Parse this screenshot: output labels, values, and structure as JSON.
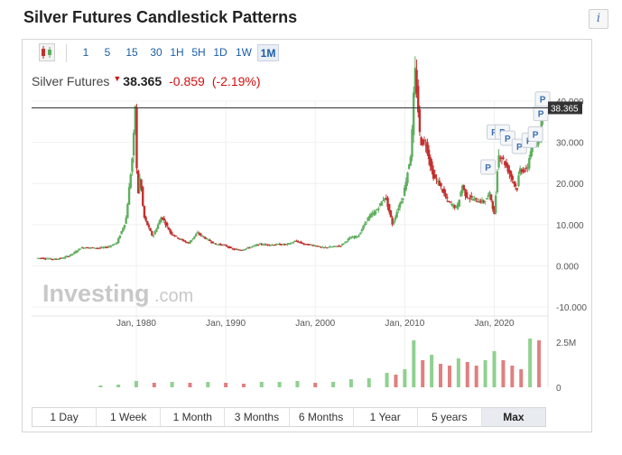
{
  "page": {
    "title": "Silver Futures Candlestick Patterns",
    "info_icon": "i"
  },
  "toolbar": {
    "chart_type_icon": "candlestick-icon",
    "timeframes": [
      "1",
      "5",
      "15",
      "30",
      "1H",
      "5H",
      "1D",
      "1W",
      "1M"
    ],
    "active_timeframe": "1M"
  },
  "quote": {
    "name": "Silver Futures",
    "direction": "down",
    "last": "38.365",
    "change": "-0.859",
    "change_pct": "(-2.19%)"
  },
  "watermark": {
    "brand": "Investing",
    "suffix": ".com"
  },
  "ranges": {
    "buttons": [
      "1 Day",
      "1 Week",
      "1 Month",
      "3 Months",
      "6 Months",
      "1 Year",
      "5 years",
      "Max"
    ],
    "active": "Max"
  },
  "colors": {
    "up": "#5fae5f",
    "down": "#c2302f",
    "volume_up": "#8fd18f",
    "volume_down": "#e07f7f",
    "price_label_bg": "#333333",
    "link_blue": "#1a5fa8",
    "negative": "#d10f0f"
  },
  "chart_data": {
    "type": "candlestick",
    "instrument": "Silver Futures",
    "interval": "1M",
    "x_ticks": [
      "Jan, 1980",
      "Jan, 1990",
      "Jan, 2000",
      "Jan, 2010",
      "Jan, 2020"
    ],
    "y_ticks": [
      "40.000",
      "30.000",
      "20.000",
      "10.000",
      "0.000",
      "-10.000"
    ],
    "y_range": [
      -10,
      40
    ],
    "volume_ticks": [
      "2.5M",
      "0"
    ],
    "current_price_label": "38.365",
    "current_price": 38.365,
    "pattern_marker_label": "P",
    "pattern_markers": [
      {
        "x": 2019.3,
        "y": 24
      },
      {
        "x": 2020.0,
        "y": 32.5
      },
      {
        "x": 2020.9,
        "y": 32.5
      },
      {
        "x": 2021.5,
        "y": 31
      },
      {
        "x": 2022.8,
        "y": 29
      },
      {
        "x": 2023.9,
        "y": 30.5
      },
      {
        "x": 2024.6,
        "y": 32
      },
      {
        "x": 2025.2,
        "y": 37
      },
      {
        "x": 2025.4,
        "y": 40.5
      }
    ],
    "price_series": [
      {
        "x": 1969.0,
        "y": 1.9
      },
      {
        "x": 1970.0,
        "y": 1.8
      },
      {
        "x": 1971.0,
        "y": 1.6
      },
      {
        "x": 1972.0,
        "y": 1.9
      },
      {
        "x": 1973.0,
        "y": 2.8
      },
      {
        "x": 1974.0,
        "y": 4.4
      },
      {
        "x": 1975.0,
        "y": 4.4
      },
      {
        "x": 1976.0,
        "y": 4.3
      },
      {
        "x": 1977.0,
        "y": 4.6
      },
      {
        "x": 1978.0,
        "y": 5.6
      },
      {
        "x": 1979.0,
        "y": 11.0
      },
      {
        "x": 1979.8,
        "y": 28.0
      },
      {
        "x": 1980.05,
        "y": 39.0
      },
      {
        "x": 1980.3,
        "y": 16.0
      },
      {
        "x": 1980.6,
        "y": 22.0
      },
      {
        "x": 1981.0,
        "y": 12.0
      },
      {
        "x": 1982.0,
        "y": 7.0
      },
      {
        "x": 1983.0,
        "y": 12.0
      },
      {
        "x": 1984.0,
        "y": 8.0
      },
      {
        "x": 1985.0,
        "y": 6.5
      },
      {
        "x": 1986.0,
        "y": 5.5
      },
      {
        "x": 1987.0,
        "y": 8.0
      },
      {
        "x": 1988.0,
        "y": 6.5
      },
      {
        "x": 1989.0,
        "y": 5.3
      },
      {
        "x": 1990.0,
        "y": 5.0
      },
      {
        "x": 1991.0,
        "y": 4.0
      },
      {
        "x": 1992.0,
        "y": 3.9
      },
      {
        "x": 1993.0,
        "y": 4.6
      },
      {
        "x": 1994.0,
        "y": 5.3
      },
      {
        "x": 1995.0,
        "y": 5.1
      },
      {
        "x": 1996.0,
        "y": 5.2
      },
      {
        "x": 1997.0,
        "y": 5.2
      },
      {
        "x": 1998.0,
        "y": 6.0
      },
      {
        "x": 1999.0,
        "y": 5.2
      },
      {
        "x": 2000.0,
        "y": 5.0
      },
      {
        "x": 2001.0,
        "y": 4.4
      },
      {
        "x": 2002.0,
        "y": 4.6
      },
      {
        "x": 2003.0,
        "y": 4.9
      },
      {
        "x": 2004.0,
        "y": 6.7
      },
      {
        "x": 2005.0,
        "y": 7.3
      },
      {
        "x": 2006.0,
        "y": 11.5
      },
      {
        "x": 2007.0,
        "y": 13.4
      },
      {
        "x": 2008.0,
        "y": 17.0
      },
      {
        "x": 2008.8,
        "y": 10.0
      },
      {
        "x": 2009.5,
        "y": 14.5
      },
      {
        "x": 2010.0,
        "y": 17.0
      },
      {
        "x": 2010.9,
        "y": 28.0
      },
      {
        "x": 2011.3,
        "y": 48.0
      },
      {
        "x": 2011.6,
        "y": 40.0
      },
      {
        "x": 2011.9,
        "y": 30.0
      },
      {
        "x": 2012.5,
        "y": 30.0
      },
      {
        "x": 2013.3,
        "y": 22.0
      },
      {
        "x": 2014.0,
        "y": 20.0
      },
      {
        "x": 2015.0,
        "y": 15.5
      },
      {
        "x": 2016.0,
        "y": 14.0
      },
      {
        "x": 2016.6,
        "y": 19.5
      },
      {
        "x": 2017.0,
        "y": 17.0
      },
      {
        "x": 2018.0,
        "y": 16.0
      },
      {
        "x": 2019.0,
        "y": 15.5
      },
      {
        "x": 2019.7,
        "y": 17.5
      },
      {
        "x": 2020.2,
        "y": 12.0
      },
      {
        "x": 2020.6,
        "y": 27.0
      },
      {
        "x": 2021.0,
        "y": 26.5
      },
      {
        "x": 2022.0,
        "y": 22.0
      },
      {
        "x": 2022.7,
        "y": 18.5
      },
      {
        "x": 2023.0,
        "y": 23.5
      },
      {
        "x": 2023.8,
        "y": 23.0
      },
      {
        "x": 2024.4,
        "y": 30.0
      },
      {
        "x": 2024.9,
        "y": 29.0
      },
      {
        "x": 2025.3,
        "y": 33.0
      },
      {
        "x": 2025.6,
        "y": 38.365
      }
    ],
    "volume_scale": [
      0,
      3.0
    ],
    "volume_series": [
      {
        "x": 1976.0,
        "v": 0.1
      },
      {
        "x": 1978.0,
        "v": 0.15
      },
      {
        "x": 1980.0,
        "v": 0.35
      },
      {
        "x": 1982.0,
        "v": 0.25
      },
      {
        "x": 1984.0,
        "v": 0.3
      },
      {
        "x": 1986.0,
        "v": 0.25
      },
      {
        "x": 1988.0,
        "v": 0.3
      },
      {
        "x": 1990.0,
        "v": 0.25
      },
      {
        "x": 1992.0,
        "v": 0.2
      },
      {
        "x": 1994.0,
        "v": 0.3
      },
      {
        "x": 1996.0,
        "v": 0.3
      },
      {
        "x": 1998.0,
        "v": 0.35
      },
      {
        "x": 2000.0,
        "v": 0.25
      },
      {
        "x": 2002.0,
        "v": 0.3
      },
      {
        "x": 2004.0,
        "v": 0.45
      },
      {
        "x": 2006.0,
        "v": 0.5
      },
      {
        "x": 2008.0,
        "v": 0.8
      },
      {
        "x": 2009.0,
        "v": 0.7
      },
      {
        "x": 2010.0,
        "v": 1.0
      },
      {
        "x": 2011.0,
        "v": 2.6
      },
      {
        "x": 2012.0,
        "v": 1.5
      },
      {
        "x": 2013.0,
        "v": 1.8
      },
      {
        "x": 2014.0,
        "v": 1.3
      },
      {
        "x": 2015.0,
        "v": 1.2
      },
      {
        "x": 2016.0,
        "v": 1.6
      },
      {
        "x": 2017.0,
        "v": 1.4
      },
      {
        "x": 2018.0,
        "v": 1.2
      },
      {
        "x": 2019.0,
        "v": 1.5
      },
      {
        "x": 2020.0,
        "v": 2.0
      },
      {
        "x": 2021.0,
        "v": 1.5
      },
      {
        "x": 2022.0,
        "v": 1.2
      },
      {
        "x": 2023.0,
        "v": 1.0
      },
      {
        "x": 2024.0,
        "v": 2.7
      },
      {
        "x": 2025.0,
        "v": 2.6
      }
    ]
  }
}
